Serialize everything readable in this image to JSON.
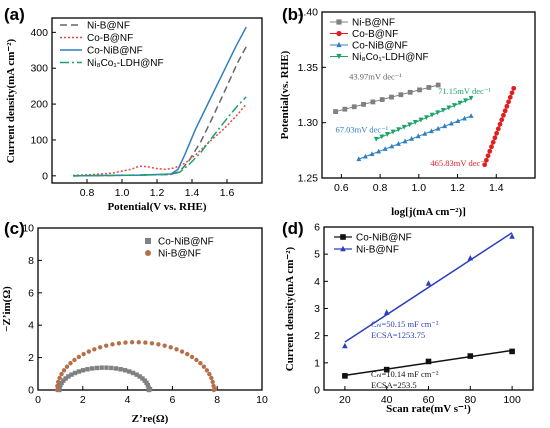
{
  "chart_data": [
    {
      "panel": "(a)",
      "type": "line",
      "xlabel": "Potential(V vs. RHE)",
      "ylabel": "Current density(mA cm⁻²)",
      "xlim": [
        0.6,
        1.8
      ],
      "ylim": [
        -20,
        440
      ],
      "xticks": [
        "0.8",
        "1.0",
        "1.2",
        "1.4",
        "1.6"
      ],
      "yticks": [
        "0",
        "100",
        "200",
        "300",
        "400"
      ],
      "legend_position": "top-left",
      "series": [
        {
          "name": "Ni-B@NF",
          "color": "#666666",
          "dash": "7,4",
          "x": [
            0.72,
            0.9,
            1.1,
            1.28,
            1.33,
            1.38,
            1.45,
            1.52,
            1.6,
            1.66,
            1.71
          ],
          "y": [
            0,
            1,
            2,
            4,
            12,
            40,
            95,
            165,
            250,
            315,
            360
          ]
        },
        {
          "name": "Co-B@NF",
          "color": "#e8473d",
          "dash": "2,2",
          "x": [
            0.72,
            0.85,
            0.95,
            1.05,
            1.1,
            1.15,
            1.2,
            1.25,
            1.3,
            1.36,
            1.42,
            1.5,
            1.58,
            1.65,
            1.71
          ],
          "y": [
            1,
            4,
            8,
            18,
            27,
            25,
            20,
            18,
            22,
            35,
            58,
            95,
            130,
            165,
            200
          ]
        },
        {
          "name": "Co-NiB@NF",
          "color": "#2f7fc1",
          "dash": "",
          "x": [
            0.72,
            0.9,
            1.1,
            1.28,
            1.32,
            1.36,
            1.42,
            1.5,
            1.58,
            1.65,
            1.71
          ],
          "y": [
            0,
            1,
            2,
            5,
            18,
            60,
            130,
            210,
            290,
            360,
            415
          ]
        },
        {
          "name": "Ni₈Co₁-LDH@NF",
          "color": "#1ba36a",
          "dash": "9,3,2,3",
          "x": [
            0.72,
            0.9,
            1.1,
            1.28,
            1.33,
            1.38,
            1.45,
            1.52,
            1.6,
            1.66,
            1.71
          ],
          "y": [
            0,
            1,
            2,
            4,
            10,
            30,
            65,
            110,
            160,
            195,
            220
          ]
        }
      ]
    },
    {
      "panel": "(b)",
      "type": "scatter",
      "xlabel": "log[j(mA cm⁻²)]",
      "ylabel": "Potential(vs. RHE)",
      "xlim": [
        0.5,
        1.6
      ],
      "ylim": [
        1.25,
        1.4
      ],
      "xticks": [
        "0.6",
        "0.8",
        "1.0",
        "1.2",
        "1.4"
      ],
      "yticks": [
        "1.25",
        "1.30",
        "1.35",
        "1.40"
      ],
      "legend_position": "top-left",
      "series": [
        {
          "name": "Ni-B@NF",
          "color": "#808080",
          "marker": "square",
          "x0": 0.57,
          "x1": 1.1,
          "y0": 1.31,
          "y1": 1.334,
          "n": 12
        },
        {
          "name": "Co-B@NF",
          "color": "#e02020",
          "marker": "circle",
          "x0": 1.34,
          "x1": 1.49,
          "y0": 1.262,
          "y1": 1.331,
          "n": 18
        },
        {
          "name": "Co-NiB@NF",
          "color": "#2f7fc1",
          "marker": "triangle",
          "x0": 0.69,
          "x1": 1.27,
          "y0": 1.267,
          "y1": 1.306,
          "n": 18
        },
        {
          "name": "Ni₈Co₁-LDH@NF",
          "color": "#1ba36a",
          "marker": "triangle-down",
          "x0": 0.78,
          "x1": 1.27,
          "y0": 1.285,
          "y1": 1.322,
          "n": 18
        }
      ],
      "annotations": [
        {
          "text": "43.97mV dec⁻¹",
          "color": "#666666",
          "x": 0.64,
          "y": 1.339
        },
        {
          "text": "71.15mV dec⁻¹",
          "color": "#1ba36a",
          "x": 1.1,
          "y": 1.326
        },
        {
          "text": "67.03mV dec⁻¹",
          "color": "#2f7fc1",
          "x": 0.57,
          "y": 1.291
        },
        {
          "text": "465.83mV dec⁻¹",
          "color": "#e02020",
          "x": 1.06,
          "y": 1.261
        }
      ]
    },
    {
      "panel": "(c)",
      "type": "scatter",
      "xlabel": "Z’re(Ω)",
      "ylabel": "−Z’im(Ω)",
      "xlim": [
        0,
        10
      ],
      "ylim": [
        0,
        10
      ],
      "xticks": [
        "0",
        "2",
        "4",
        "6",
        "8",
        "10"
      ],
      "yticks": [
        "0",
        "2",
        "4",
        "6",
        "8",
        "10"
      ],
      "legend_position": "top-right",
      "series": [
        {
          "name": "Co-NiB@NF",
          "color": "#808080",
          "marker": "square",
          "x_start": 0.95,
          "x_end": 4.95,
          "peak": 1.38,
          "n": 30
        },
        {
          "name": "Ni-B@NF",
          "color": "#b5704a",
          "marker": "circle",
          "x_start": 0.85,
          "x_end": 7.85,
          "peak": 2.95,
          "n": 38
        }
      ]
    },
    {
      "panel": "(d)",
      "type": "scatter",
      "xlabel": "Scan rate(mV s⁻¹)",
      "ylabel": "Current density(mA cm⁻²)",
      "xlim": [
        10,
        110
      ],
      "ylim": [
        0,
        6
      ],
      "xticks": [
        "20",
        "40",
        "60",
        "80",
        "100"
      ],
      "yticks": [
        "0",
        "1",
        "2",
        "3",
        "4",
        "5",
        "6"
      ],
      "legend_position": "top-left",
      "series": [
        {
          "name": "Co-NiB@NF",
          "color": "#111111",
          "marker": "square",
          "x": [
            20,
            40,
            60,
            80,
            100
          ],
          "y": [
            0.52,
            0.75,
            1.05,
            1.25,
            1.42
          ]
        },
        {
          "name": "Ni-B@NF",
          "color": "#2a3fbf",
          "marker": "triangle",
          "x": [
            20,
            40,
            60,
            80,
            100
          ],
          "y": [
            1.62,
            2.85,
            3.92,
            4.85,
            5.65
          ]
        }
      ],
      "annotations": [
        {
          "line1": "Cₙₗ=50.15 mF cm⁻²",
          "line2": "ECSA=1253.75",
          "color": "#2a3fbf"
        },
        {
          "line1": "Cₙₗ=10.14 mF cm⁻²",
          "line2": "ECSA=253.5",
          "color": "#111111"
        }
      ]
    }
  ]
}
